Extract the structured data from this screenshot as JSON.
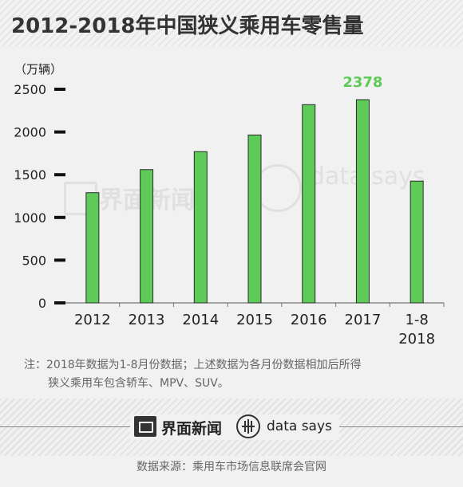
{
  "title": "2012-2018年中国狭义乘用车零售量",
  "unit_label": "（万辆）",
  "chart_data": {
    "type": "bar",
    "categories": [
      "2012",
      "2013",
      "2014",
      "2015",
      "2016",
      "2017",
      "1-8\n2018"
    ],
    "values": [
      1290,
      1560,
      1770,
      1965,
      2320,
      2378,
      1425
    ],
    "ylim": [
      0,
      2500
    ],
    "yticks": [
      0,
      500,
      1000,
      1500,
      2000,
      2500
    ],
    "highlight_label": "2378",
    "grid": false,
    "colors": {
      "bar": "#5ecb58",
      "bar_stroke": "#2a2a2a",
      "highlight": "#5ecb58"
    }
  },
  "notes": [
    "注：2018年数据为1-8月份数据；上述数据为各月份数据相加后所得",
    "狭义乘用车包含轿车、MPV、SUV。"
  ],
  "watermark": {
    "cn": "界面新闻",
    "en": "data says"
  },
  "footer": {
    "brand_cn": "界面新闻",
    "brand_en": "data says",
    "source": "数据来源：乘用车市场信息联席会官网"
  }
}
